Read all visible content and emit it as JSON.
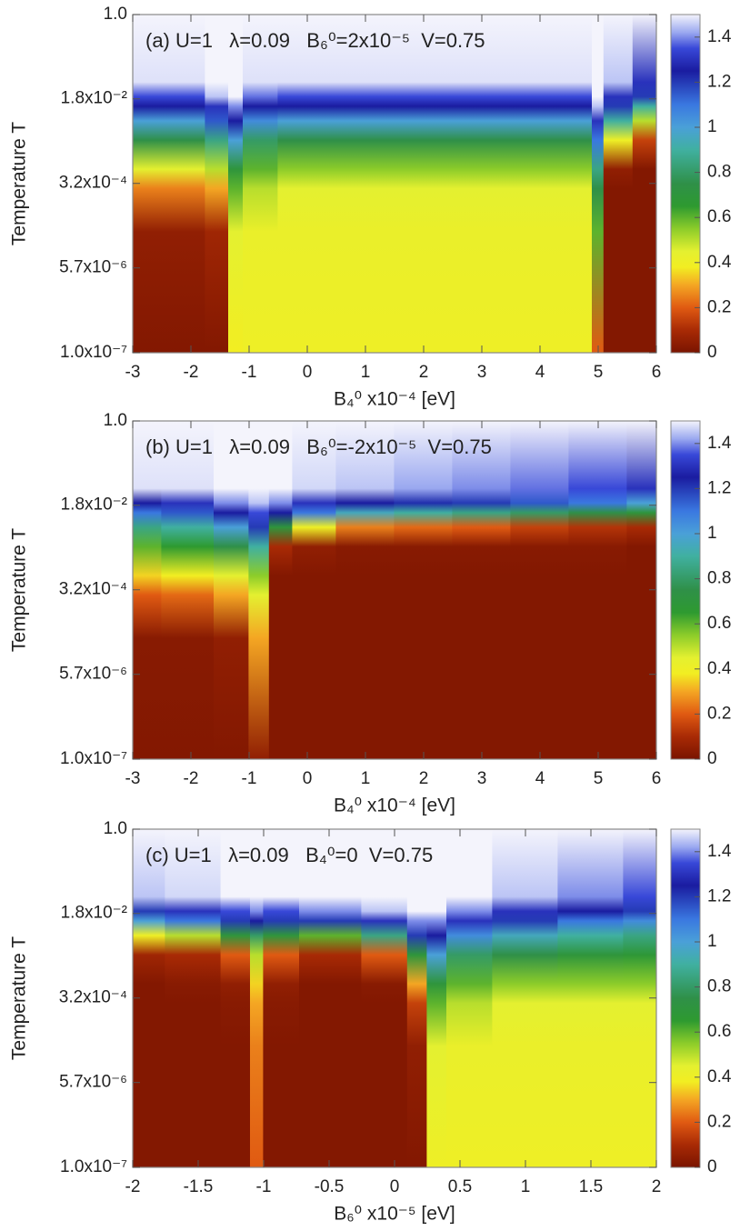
{
  "chart_data": [
    {
      "type": "heatmap",
      "annotation": "(a) U=1   λ=0.09   B₆⁰=2x10⁻⁵  V=0.75",
      "x_label": "B₄⁰ x10⁻⁴ [eV]",
      "y_label": "Temperature T",
      "xlim": [
        -3,
        6
      ],
      "xticks": [
        -3,
        -2,
        -1,
        0,
        1,
        2,
        3,
        4,
        5,
        6
      ],
      "ylim": [
        1e-07,
        1
      ],
      "log_y": true,
      "yticks": [
        {
          "value": 1e-07,
          "label": "1.0x10⁻⁷"
        },
        {
          "value": 5.7e-06,
          "label": "5.7x10⁻⁶"
        },
        {
          "value": 0.00032,
          "label": "3.2x10⁻⁴"
        },
        {
          "value": 0.018,
          "label": "1.8x10⁻²"
        },
        {
          "value": 1,
          "label": "1.0"
        }
      ],
      "clim": [
        0,
        1.5
      ],
      "cticks": [
        0,
        0.2,
        0.4,
        0.6,
        0.8,
        1,
        1.2,
        1.4
      ],
      "x": [
        -3,
        -2,
        -1.5,
        -1.2,
        -1,
        0,
        1,
        2,
        3,
        4,
        4.8,
        5,
        5.2,
        6
      ],
      "y": [
        1,
        0.04,
        0.02,
        0.0126,
        0.0063,
        0.0025,
        0.00063,
        0.00025,
        3.2e-05,
        1e-07
      ],
      "z": [
        [
          1.5,
          1.48,
          1.35,
          1.25,
          1.0,
          0.75,
          0.45,
          0.25,
          0.05,
          0.02
        ],
        [
          1.5,
          1.48,
          1.35,
          1.25,
          1.0,
          0.75,
          0.45,
          0.25,
          0.05,
          0.02
        ],
        [
          1.5,
          1.5,
          1.45,
          1.3,
          1.15,
          0.85,
          0.5,
          0.3,
          0.08,
          0.02
        ],
        [
          1.5,
          1.5,
          1.5,
          1.4,
          1.25,
          1.0,
          0.7,
          0.6,
          0.45,
          0.38
        ],
        [
          1.5,
          1.48,
          1.38,
          1.25,
          1.05,
          0.8,
          0.6,
          0.5,
          0.42,
          0.4
        ],
        [
          1.5,
          1.48,
          1.35,
          1.25,
          1.0,
          0.75,
          0.55,
          0.45,
          0.42,
          0.4
        ],
        [
          1.5,
          1.48,
          1.35,
          1.25,
          1.0,
          0.75,
          0.55,
          0.45,
          0.42,
          0.4
        ],
        [
          1.5,
          1.48,
          1.35,
          1.25,
          1.0,
          0.75,
          0.55,
          0.45,
          0.42,
          0.4
        ],
        [
          1.5,
          1.48,
          1.35,
          1.25,
          1.0,
          0.75,
          0.55,
          0.45,
          0.42,
          0.4
        ],
        [
          1.5,
          1.48,
          1.35,
          1.25,
          1.0,
          0.75,
          0.55,
          0.45,
          0.42,
          0.4
        ],
        [
          1.5,
          1.48,
          1.35,
          1.25,
          1.0,
          0.75,
          0.55,
          0.45,
          0.42,
          0.4
        ],
        [
          1.5,
          1.5,
          1.5,
          1.45,
          1.3,
          1.1,
          0.85,
          0.75,
          0.6,
          0.2
        ],
        [
          1.5,
          1.45,
          1.3,
          1.2,
          0.9,
          0.4,
          0.05,
          0.02,
          0.02,
          0.02
        ],
        [
          1.5,
          1.3,
          1.2,
          0.9,
          0.5,
          0.15,
          0.02,
          0.02,
          0.02,
          0.02
        ]
      ],
      "colorscale": [
        {
          "value": 0,
          "color": "#7a1400"
        },
        {
          "value": 0.1,
          "color": "#a82a05"
        },
        {
          "value": 0.2,
          "color": "#e05a12"
        },
        {
          "value": 0.3,
          "color": "#f4a623"
        },
        {
          "value": 0.38,
          "color": "#f2ee22"
        },
        {
          "value": 0.45,
          "color": "#e4f030"
        },
        {
          "value": 0.55,
          "color": "#8ccc2a"
        },
        {
          "value": 0.65,
          "color": "#2e9a30"
        },
        {
          "value": 0.75,
          "color": "#2f9048"
        },
        {
          "value": 0.9,
          "color": "#40b0a0"
        },
        {
          "value": 1.0,
          "color": "#4aa0d8"
        },
        {
          "value": 1.1,
          "color": "#3a78e0"
        },
        {
          "value": 1.25,
          "color": "#1a1ca0"
        },
        {
          "value": 1.35,
          "color": "#3848d8"
        },
        {
          "value": 1.42,
          "color": "#9aa8f0"
        },
        {
          "value": 1.5,
          "color": "#f4f4fc"
        }
      ]
    },
    {
      "type": "heatmap",
      "annotation": "(b) U=1   λ=0.09   B₆⁰=-2x10⁻⁵  V=0.75",
      "x_label": "B₄⁰ x10⁻⁴ [eV]",
      "y_label": "Temperature T",
      "xlim": [
        -3,
        6
      ],
      "xticks": [
        -3,
        -2,
        -1,
        0,
        1,
        2,
        3,
        4,
        5,
        6
      ],
      "ylim": [
        1e-07,
        1
      ],
      "log_y": true,
      "yticks": [
        {
          "value": 1e-07,
          "label": "1.0x10⁻⁷"
        },
        {
          "value": 5.7e-06,
          "label": "5.7x10⁻⁶"
        },
        {
          "value": 0.00032,
          "label": "3.2x10⁻⁴"
        },
        {
          "value": 0.018,
          "label": "1.8x10⁻²"
        },
        {
          "value": 1,
          "label": "1.0"
        }
      ],
      "clim": [
        0,
        1.5
      ],
      "cticks": [
        0,
        0.2,
        0.4,
        0.6,
        0.8,
        1,
        1.2,
        1.4
      ],
      "x": [
        -3,
        -2,
        -1.2,
        -0.8,
        -0.5,
        0,
        1,
        2,
        3,
        4,
        5,
        6
      ],
      "y": [
        1,
        0.04,
        0.02,
        0.0126,
        0.0063,
        0.0025,
        0.00063,
        0.00025,
        3.2e-05,
        1e-07
      ],
      "z": [
        [
          1.5,
          1.48,
          1.25,
          1.1,
          0.85,
          0.6,
          0.35,
          0.2,
          0.03,
          0.02
        ],
        [
          1.5,
          1.48,
          1.3,
          1.15,
          0.9,
          0.65,
          0.38,
          0.22,
          0.03,
          0.02
        ],
        [
          1.5,
          1.5,
          1.4,
          1.25,
          1.0,
          0.75,
          0.45,
          0.3,
          0.05,
          0.02
        ],
        [
          1.5,
          1.5,
          1.45,
          1.35,
          1.2,
          0.9,
          0.55,
          0.45,
          0.3,
          0.05
        ],
        [
          1.5,
          1.5,
          1.4,
          1.25,
          0.7,
          0.1,
          0.02,
          0.02,
          0.02,
          0.02
        ],
        [
          1.5,
          1.47,
          1.3,
          1.1,
          0.4,
          0.05,
          0.02,
          0.02,
          0.02,
          0.02
        ],
        [
          1.5,
          1.45,
          1.25,
          0.95,
          0.25,
          0.03,
          0.02,
          0.02,
          0.02,
          0.02
        ],
        [
          1.5,
          1.42,
          1.22,
          0.9,
          0.22,
          0.03,
          0.02,
          0.02,
          0.02,
          0.02
        ],
        [
          1.5,
          1.4,
          1.2,
          0.85,
          0.2,
          0.03,
          0.02,
          0.02,
          0.02,
          0.02
        ],
        [
          1.5,
          1.38,
          1.15,
          0.8,
          0.15,
          0.03,
          0.02,
          0.02,
          0.02,
          0.02
        ],
        [
          1.5,
          1.35,
          1.1,
          0.75,
          0.12,
          0.03,
          0.02,
          0.02,
          0.02,
          0.02
        ],
        [
          1.5,
          1.3,
          1.0,
          0.7,
          0.1,
          0.02,
          0.02,
          0.02,
          0.02,
          0.02
        ]
      ],
      "colorscale": [
        {
          "value": 0,
          "color": "#7a1400"
        },
        {
          "value": 0.1,
          "color": "#a82a05"
        },
        {
          "value": 0.2,
          "color": "#e05a12"
        },
        {
          "value": 0.3,
          "color": "#f4a623"
        },
        {
          "value": 0.38,
          "color": "#f2ee22"
        },
        {
          "value": 0.45,
          "color": "#e4f030"
        },
        {
          "value": 0.55,
          "color": "#8ccc2a"
        },
        {
          "value": 0.65,
          "color": "#2e9a30"
        },
        {
          "value": 0.75,
          "color": "#2f9048"
        },
        {
          "value": 0.9,
          "color": "#40b0a0"
        },
        {
          "value": 1.0,
          "color": "#4aa0d8"
        },
        {
          "value": 1.1,
          "color": "#3a78e0"
        },
        {
          "value": 1.25,
          "color": "#1a1ca0"
        },
        {
          "value": 1.35,
          "color": "#3848d8"
        },
        {
          "value": 1.42,
          "color": "#9aa8f0"
        },
        {
          "value": 1.5,
          "color": "#f4f4fc"
        }
      ]
    },
    {
      "type": "heatmap",
      "annotation": "(c) U=1   λ=0.09   B₄⁰=0  V=0.75",
      "x_label": "B₆⁰ x10⁻⁵ [eV]",
      "y_label": "Temperature T",
      "xlim": [
        -2,
        2
      ],
      "xticks": [
        -2,
        -1.5,
        -1,
        -0.5,
        0,
        0.5,
        1,
        1.5,
        2
      ],
      "ylim": [
        1e-07,
        1
      ],
      "log_y": true,
      "yticks": [
        {
          "value": 1e-07,
          "label": "1.0x10⁻⁷"
        },
        {
          "value": 5.7e-06,
          "label": "5.7x10⁻⁶"
        },
        {
          "value": 0.00032,
          "label": "3.2x10⁻⁴"
        },
        {
          "value": 0.018,
          "label": "1.8x10⁻²"
        },
        {
          "value": 1,
          "label": "1.0"
        }
      ],
      "clim": [
        0,
        1.5
      ],
      "cticks": [
        0,
        0.2,
        0.4,
        0.6,
        0.8,
        1,
        1.2,
        1.4
      ],
      "x": [
        -2,
        -1.5,
        -1.15,
        -1.05,
        -0.95,
        -0.5,
        0,
        0.2,
        0.3,
        0.5,
        1,
        1.5,
        2
      ],
      "y": [
        1,
        0.04,
        0.02,
        0.0126,
        0.0063,
        0.0025,
        0.00063,
        0.00025,
        3.2e-05,
        1e-07
      ],
      "z": [
        [
          1.5,
          1.45,
          1.2,
          1.0,
          0.4,
          0.08,
          0.02,
          0.02,
          0.02,
          0.02
        ],
        [
          1.5,
          1.47,
          1.3,
          1.1,
          0.5,
          0.1,
          0.03,
          0.02,
          0.02,
          0.02
        ],
        [
          1.5,
          1.5,
          1.35,
          1.2,
          0.7,
          0.2,
          0.05,
          0.03,
          0.02,
          0.02
        ],
        [
          1.5,
          1.5,
          1.4,
          1.25,
          0.8,
          0.5,
          0.35,
          0.3,
          0.25,
          0.2
        ],
        [
          1.5,
          1.5,
          1.35,
          1.2,
          0.7,
          0.2,
          0.05,
          0.03,
          0.02,
          0.02
        ],
        [
          1.5,
          1.5,
          1.4,
          1.2,
          0.6,
          0.1,
          0.02,
          0.02,
          0.02,
          0.02
        ],
        [
          1.5,
          1.5,
          1.45,
          1.3,
          0.85,
          0.2,
          0.03,
          0.02,
          0.02,
          0.02
        ],
        [
          1.5,
          1.5,
          1.5,
          1.4,
          1.2,
          0.7,
          0.3,
          0.15,
          0.05,
          0.02
        ],
        [
          1.5,
          1.5,
          1.5,
          1.4,
          1.25,
          1.0,
          0.7,
          0.6,
          0.45,
          0.4
        ],
        [
          1.5,
          1.5,
          1.4,
          1.3,
          1.05,
          0.8,
          0.6,
          0.5,
          0.42,
          0.4
        ],
        [
          1.5,
          1.45,
          1.3,
          1.2,
          0.95,
          0.75,
          0.55,
          0.45,
          0.42,
          0.4
        ],
        [
          1.5,
          1.4,
          1.25,
          1.1,
          0.9,
          0.7,
          0.55,
          0.45,
          0.42,
          0.4
        ],
        [
          1.5,
          1.35,
          1.2,
          1.05,
          0.85,
          0.68,
          0.55,
          0.45,
          0.42,
          0.4
        ]
      ],
      "colorscale": [
        {
          "value": 0,
          "color": "#7a1400"
        },
        {
          "value": 0.1,
          "color": "#a82a05"
        },
        {
          "value": 0.2,
          "color": "#e05a12"
        },
        {
          "value": 0.3,
          "color": "#f4a623"
        },
        {
          "value": 0.38,
          "color": "#f2ee22"
        },
        {
          "value": 0.45,
          "color": "#e4f030"
        },
        {
          "value": 0.55,
          "color": "#8ccc2a"
        },
        {
          "value": 0.65,
          "color": "#2e9a30"
        },
        {
          "value": 0.75,
          "color": "#2f9048"
        },
        {
          "value": 0.9,
          "color": "#40b0a0"
        },
        {
          "value": 1.0,
          "color": "#4aa0d8"
        },
        {
          "value": 1.1,
          "color": "#3a78e0"
        },
        {
          "value": 1.25,
          "color": "#1a1ca0"
        },
        {
          "value": 1.35,
          "color": "#3848d8"
        },
        {
          "value": 1.42,
          "color": "#9aa8f0"
        },
        {
          "value": 1.5,
          "color": "#f4f4fc"
        }
      ]
    }
  ]
}
